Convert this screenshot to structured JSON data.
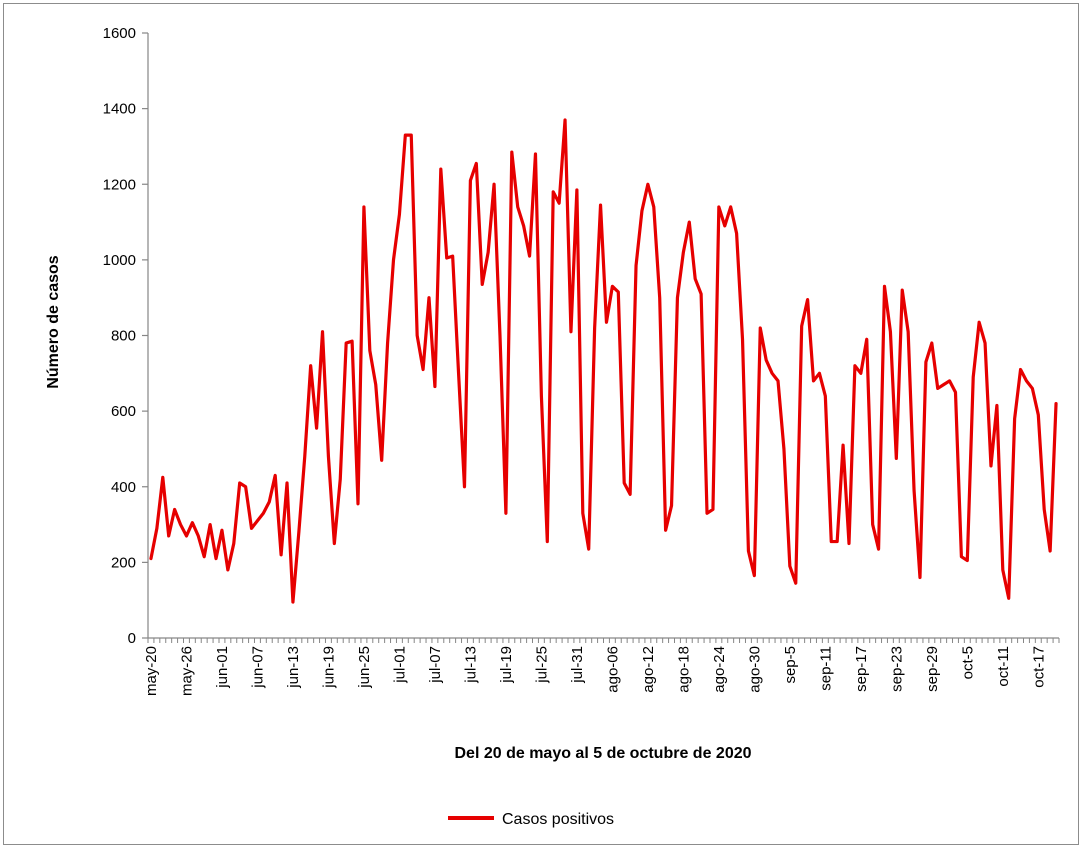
{
  "chart_data": {
    "type": "line",
    "title": "",
    "xlabel": "Del 20 de mayo al 5 de octubre de 2020",
    "ylabel": "Número de casos",
    "ylim": [
      0,
      1600
    ],
    "yticks": [
      0,
      200,
      400,
      600,
      800,
      1000,
      1200,
      1400,
      1600
    ],
    "grid": false,
    "legend_position": "bottom",
    "x_start": "may-20",
    "x_tick_labels": [
      "may-20",
      "may-26",
      "jun-01",
      "jun-07",
      "jun-13",
      "jun-19",
      "jun-25",
      "jul-01",
      "jul-07",
      "jul-13",
      "jul-19",
      "jul-25",
      "jul-31",
      "ago-06",
      "ago-12",
      "ago-18",
      "ago-24",
      "ago-30",
      "sep-5",
      "sep-11",
      "sep-17",
      "sep-23",
      "sep-29",
      "oct-5",
      "oct-11",
      "oct-17"
    ],
    "series": [
      {
        "name": "Casos positivos",
        "color": "#e60000",
        "values": [
          210,
          290,
          425,
          270,
          340,
          300,
          270,
          305,
          270,
          215,
          300,
          210,
          285,
          180,
          250,
          410,
          400,
          290,
          310,
          330,
          360,
          430,
          220,
          410,
          95,
          280,
          480,
          720,
          555,
          810,
          480,
          250,
          420,
          780,
          785,
          355,
          1140,
          760,
          670,
          470,
          780,
          1000,
          1120,
          1330,
          1330,
          800,
          710,
          900,
          665,
          1240,
          1005,
          1010,
          700,
          400,
          1210,
          1255,
          935,
          1020,
          1200,
          800,
          330,
          1285,
          1140,
          1090,
          1010,
          1280,
          640,
          255,
          1180,
          1150,
          1370,
          810,
          1185,
          330,
          235,
          820,
          1145,
          835,
          930,
          915,
          410,
          380,
          985,
          1130,
          1200,
          1140,
          900,
          285,
          350,
          900,
          1020,
          1100,
          950,
          910,
          330,
          340,
          1140,
          1090,
          1140,
          1070,
          790,
          230,
          165,
          820,
          735,
          700,
          680,
          500,
          190,
          145,
          825,
          895,
          680,
          700,
          640,
          255,
          255,
          510,
          250,
          720,
          700,
          790,
          300,
          235,
          930,
          810,
          475,
          920,
          810,
          390,
          160,
          730,
          780,
          660,
          670,
          680,
          650,
          215,
          205,
          690,
          835,
          780,
          455,
          615,
          180,
          105,
          580,
          710,
          680,
          660,
          590,
          340,
          230,
          620
        ]
      }
    ]
  }
}
